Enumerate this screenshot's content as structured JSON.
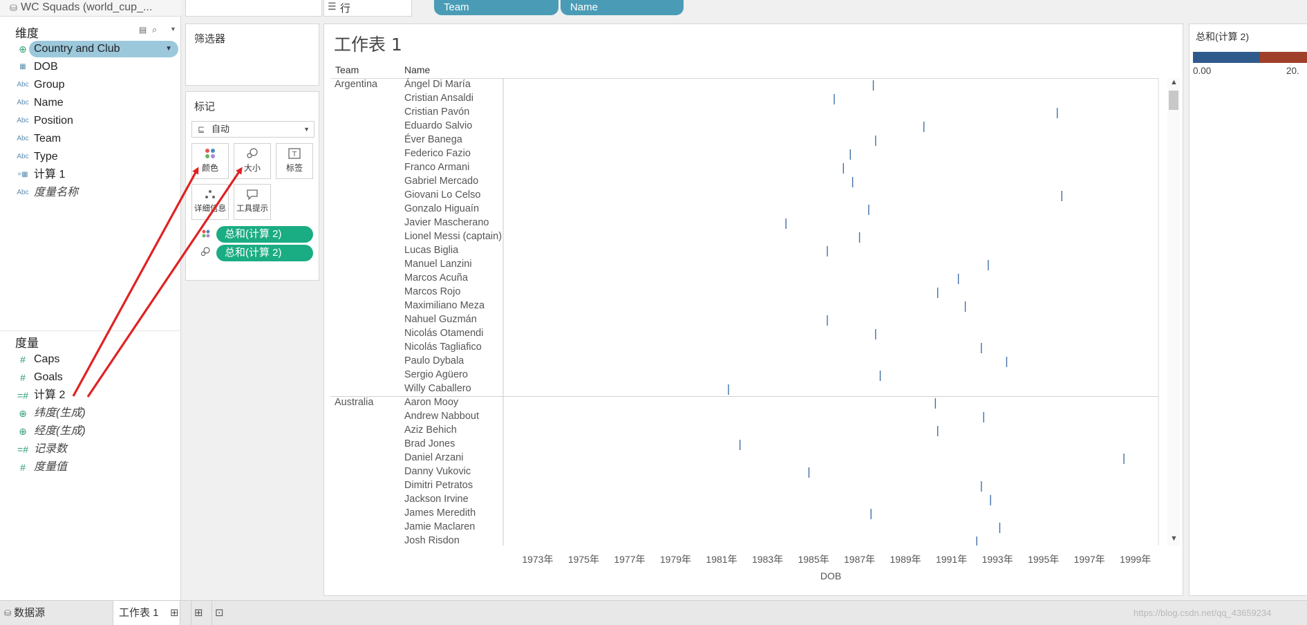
{
  "datasource": {
    "label": "WC Squads (world_cup_..."
  },
  "dimensions": {
    "title": "维度",
    "fields": [
      {
        "label": "Country and Club",
        "icon": "globe-icon",
        "selected": true
      },
      {
        "label": "DOB",
        "icon": "calendar-icon"
      },
      {
        "label": "Group",
        "icon": "abc-icon"
      },
      {
        "label": "Name",
        "icon": "abc-icon"
      },
      {
        "label": "Position",
        "icon": "abc-icon"
      },
      {
        "label": "Team",
        "icon": "abc-icon"
      },
      {
        "label": "Type",
        "icon": "abc-icon"
      },
      {
        "label": "计算 1",
        "icon": "calc-calendar-icon"
      },
      {
        "label": "度量名称",
        "icon": "abc-icon",
        "italic": true
      }
    ]
  },
  "measures": {
    "title": "度量",
    "fields": [
      {
        "label": "Caps",
        "icon": "hash-icon"
      },
      {
        "label": "Goals",
        "icon": "hash-icon"
      },
      {
        "label": "计算 2",
        "icon": "calc-hash-icon"
      },
      {
        "label": "纬度(生成)",
        "icon": "globe-icon",
        "italic": true
      },
      {
        "label": "经度(生成)",
        "icon": "globe-icon",
        "italic": true
      },
      {
        "label": "记录数",
        "icon": "calc-hash-icon",
        "italic": true
      },
      {
        "label": "度量值",
        "icon": "hash-icon",
        "italic": true
      }
    ]
  },
  "shelves": {
    "rows_label": "行",
    "rows_pills": [
      "Team",
      "Name"
    ],
    "filters_title": "筛选器",
    "marks_title": "标记",
    "mark_type": "自动",
    "mark_buttons": [
      {
        "label": "颜色",
        "icon": "color-icon"
      },
      {
        "label": "大小",
        "icon": "size-icon"
      },
      {
        "label": "标签",
        "icon": "label-icon"
      },
      {
        "label": "详细信息",
        "icon": "detail-icon"
      },
      {
        "label": "工具提示",
        "icon": "tooltip-icon"
      }
    ],
    "mark_pills": [
      {
        "label": "总和(计算 2)",
        "type": "color"
      },
      {
        "label": "总和(计算 2)",
        "type": "size"
      }
    ]
  },
  "worksheet": {
    "title": "工作表 1",
    "col_header_team": "Team",
    "col_header_name": "Name"
  },
  "chart_data": {
    "type": "scatter",
    "xlabel": "DOB",
    "x_tick_labels": [
      "1973年",
      "1975年",
      "1977年",
      "1979年",
      "1981年",
      "1983年",
      "1985年",
      "1987年",
      "1989年",
      "1991年",
      "1993年",
      "1995年",
      "1997年",
      "1999年"
    ],
    "xlim": [
      1972.0,
      2000.5
    ],
    "series": [
      {
        "team": "Argentina",
        "rows": [
          {
            "name": "Ángel Di María",
            "dob": 1988.1
          },
          {
            "name": "Cristian Ansaldi",
            "dob": 1986.4
          },
          {
            "name": "Cristian Pavón",
            "dob": 1996.1
          },
          {
            "name": "Eduardo Salvio",
            "dob": 1990.3
          },
          {
            "name": "Éver Banega",
            "dob": 1988.2
          },
          {
            "name": "Federico Fazio",
            "dob": 1987.1
          },
          {
            "name": "Franco Armani",
            "dob": 1986.8
          },
          {
            "name": "Gabriel Mercado",
            "dob": 1987.2
          },
          {
            "name": "Giovani Lo Celso",
            "dob": 1996.3
          },
          {
            "name": "Gonzalo Higuaín",
            "dob": 1987.9
          },
          {
            "name": "Javier Mascherano",
            "dob": 1984.3
          },
          {
            "name": "Lionel Messi (captain)",
            "dob": 1987.5
          },
          {
            "name": "Lucas Biglia",
            "dob": 1986.1
          },
          {
            "name": "Manuel Lanzini",
            "dob": 1993.1
          },
          {
            "name": "Marcos Acuña",
            "dob": 1991.8
          },
          {
            "name": "Marcos Rojo",
            "dob": 1990.9
          },
          {
            "name": "Maximiliano Meza",
            "dob": 1992.1
          },
          {
            "name": "Nahuel Guzmán",
            "dob": 1986.1
          },
          {
            "name": "Nicolás Otamendi",
            "dob": 1988.2
          },
          {
            "name": "Nicolás Tagliafico",
            "dob": 1992.8
          },
          {
            "name": "Paulo Dybala",
            "dob": 1993.9
          },
          {
            "name": "Sergio Agüero",
            "dob": 1988.4
          },
          {
            "name": "Willy Caballero",
            "dob": 1981.8
          }
        ]
      },
      {
        "team": "Australia",
        "rows": [
          {
            "name": "Aaron Mooy",
            "dob": 1990.8
          },
          {
            "name": "Andrew Nabbout",
            "dob": 1992.9
          },
          {
            "name": "Aziz Behich",
            "dob": 1990.9
          },
          {
            "name": "Brad Jones",
            "dob": 1982.3
          },
          {
            "name": "Daniel Arzani",
            "dob": 1999.0
          },
          {
            "name": "Danny Vukovic",
            "dob": 1985.3
          },
          {
            "name": "Dimitri Petratos",
            "dob": 1992.8
          },
          {
            "name": "Jackson Irvine",
            "dob": 1993.2
          },
          {
            "name": "James Meredith",
            "dob": 1988.0
          },
          {
            "name": "Jamie Maclaren",
            "dob": 1993.6
          },
          {
            "name": "Josh Risdon",
            "dob": 1992.6
          }
        ]
      }
    ],
    "legend": {
      "title": "总和(计算 2)",
      "min_label": "0.00",
      "max_label": "20.",
      "colors": [
        "#2f5b8c",
        "#a0402a"
      ]
    }
  },
  "bottom_tabs": {
    "datasource_label": "数据源",
    "sheet_label": "工作表 1"
  },
  "watermark": "https://blog.csdn.net/qq_43659234"
}
